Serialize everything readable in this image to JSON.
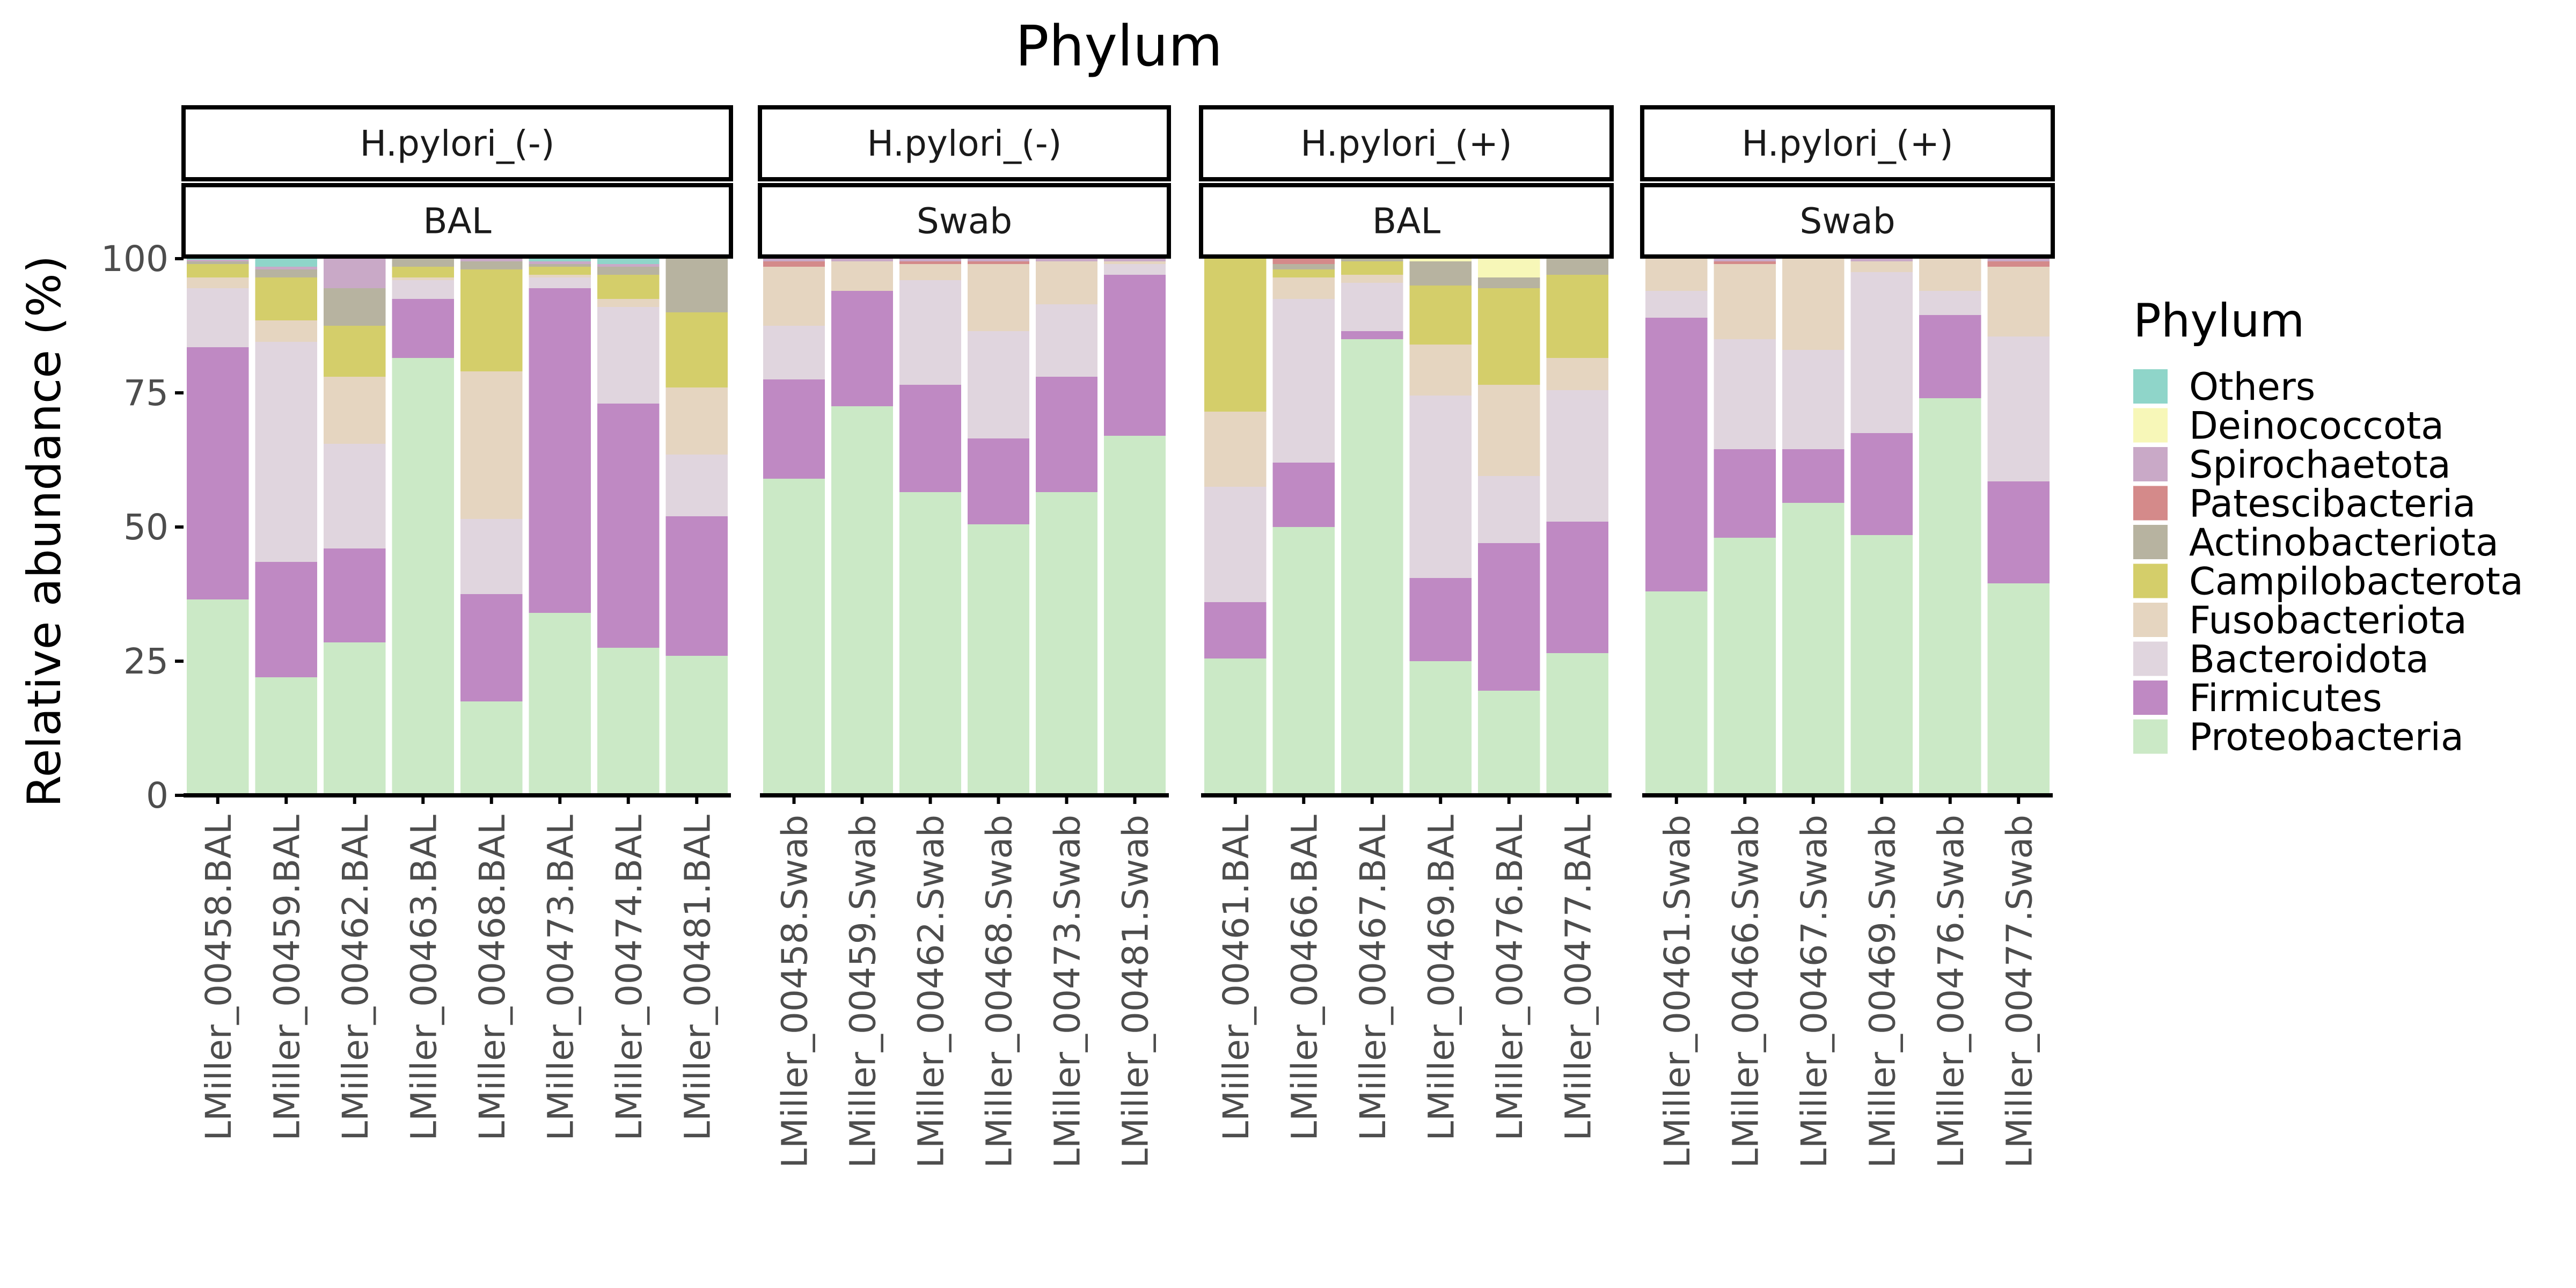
{
  "chart_data": {
    "type": "bar",
    "stacked": true,
    "title": "Phylum",
    "ylabel": "Relative abundance (%)",
    "xlabel": "",
    "ylim": [
      0,
      100
    ],
    "yticks": [
      0,
      25,
      50,
      75,
      100
    ],
    "legend": {
      "title": "Phylum",
      "position": "right",
      "entries": [
        "Others",
        "Deinococcota",
        "Spirochaetota",
        "Patescibacteria",
        "Actinobacteriota",
        "Campilobacterota",
        "Fusobacteriota",
        "Bacteroidota",
        "Firmicutes",
        "Proteobacteria"
      ]
    },
    "stack_order_bottom_to_top": [
      "Proteobacteria",
      "Firmicutes",
      "Bacteroidota",
      "Fusobacteriota",
      "Campilobacterota",
      "Actinobacteriota",
      "Patescibacteria",
      "Spirochaetota",
      "Deinococcota",
      "Others"
    ],
    "colors": {
      "Others": "#8fd5c9",
      "Deinococcota": "#f7f7b8",
      "Spirochaetota": "#c9a9c7",
      "Patescibacteria": "#d48a8a",
      "Actinobacteriota": "#b7b3a0",
      "Campilobacterota": "#d4ce6a",
      "Fusobacteriota": "#e5d5c0",
      "Bacteroidota": "#e0d5de",
      "Firmicutes": "#bf89c3",
      "Proteobacteria": "#cbe9c6"
    },
    "panels": [
      {
        "strip_top": "H.pylori_(-)",
        "strip_bottom": "BAL",
        "categories": [
          "LMiller_00458.BAL",
          "LMiller_00459.BAL",
          "LMiller_00462.BAL",
          "LMiller_00463.BAL",
          "LMiller_00468.BAL",
          "LMiller_00473.BAL",
          "LMiller_00474.BAL",
          "LMiller_00481.BAL"
        ],
        "series": [
          {
            "name": "Proteobacteria",
            "values": [
              36.5,
              22,
              28.5,
              81.5,
              17.5,
              34,
              27.5,
              26
            ]
          },
          {
            "name": "Firmicutes",
            "values": [
              47,
              21.5,
              17.5,
              11,
              20,
              60.5,
              45.5,
              26
            ]
          },
          {
            "name": "Bacteroidota",
            "values": [
              11,
              41,
              19.5,
              3.5,
              14,
              2,
              18,
              11.5
            ]
          },
          {
            "name": "Fusobacteriota",
            "values": [
              2,
              4,
              12.5,
              0.5,
              27.5,
              0.5,
              1.5,
              12.5
            ]
          },
          {
            "name": "Campilobacterota",
            "values": [
              2.5,
              8,
              9.5,
              2,
              19,
              1.5,
              4.5,
              14
            ]
          },
          {
            "name": "Actinobacteriota",
            "values": [
              0.5,
              1.5,
              7,
              1.5,
              1.5,
              0.5,
              1.5,
              10
            ]
          },
          {
            "name": "Patescibacteria",
            "values": [
              0,
              0,
              0,
              0,
              0,
              0,
              0,
              0
            ]
          },
          {
            "name": "Spirochaetota",
            "values": [
              0.3,
              0.5,
              5.5,
              0,
              0.5,
              0.5,
              0.5,
              0
            ]
          },
          {
            "name": "Deinococcota",
            "values": [
              0,
              0,
              0,
              0,
              0,
              0,
              0,
              0
            ]
          },
          {
            "name": "Others",
            "values": [
              0.2,
              1.5,
              0,
              0,
              0,
              0.5,
              1,
              0
            ]
          }
        ]
      },
      {
        "strip_top": "H.pylori_(-)",
        "strip_bottom": "Swab",
        "categories": [
          "LMiller_00458.Swab",
          "LMiller_00459.Swab",
          "LMiller_00462.Swab",
          "LMiller_00468.Swab",
          "LMiller_00473.Swab",
          "LMiller_00481.Swab"
        ],
        "series": [
          {
            "name": "Proteobacteria",
            "values": [
              59,
              72.5,
              56.5,
              50.5,
              56.5,
              67
            ]
          },
          {
            "name": "Firmicutes",
            "values": [
              18.5,
              21.5,
              20,
              16,
              21.5,
              30
            ]
          },
          {
            "name": "Bacteroidota",
            "values": [
              10,
              0,
              19.5,
              20,
              13.5,
              2
            ]
          },
          {
            "name": "Fusobacteriota",
            "values": [
              11,
              5.5,
              3,
              12.5,
              8,
              0.5
            ]
          },
          {
            "name": "Campilobacterota",
            "values": [
              0,
              0,
              0,
              0,
              0,
              0
            ]
          },
          {
            "name": "Actinobacteriota",
            "values": [
              0,
              0,
              0,
              0,
              0,
              0
            ]
          },
          {
            "name": "Patescibacteria",
            "values": [
              1,
              0,
              0.5,
              0.5,
              0,
              0
            ]
          },
          {
            "name": "Spirochaetota",
            "values": [
              0.5,
              0.5,
              0.5,
              0.5,
              0.5,
              0.5
            ]
          },
          {
            "name": "Deinococcota",
            "values": [
              0,
              0,
              0,
              0,
              0,
              0
            ]
          },
          {
            "name": "Others",
            "values": [
              0,
              0,
              0,
              0,
              0,
              0
            ]
          }
        ]
      },
      {
        "strip_top": "H.pylori_(+)",
        "strip_bottom": "BAL",
        "categories": [
          "LMiller_00461.BAL",
          "LMiller_00466.BAL",
          "LMiller_00467.BAL",
          "LMiller_00469.BAL",
          "LMiller_00476.BAL",
          "LMiller_00477.BAL"
        ],
        "series": [
          {
            "name": "Proteobacteria",
            "values": [
              25.5,
              50,
              85,
              25,
              19.5,
              26.5
            ]
          },
          {
            "name": "Firmicutes",
            "values": [
              10.5,
              12,
              1.5,
              15.5,
              27.5,
              24.5
            ]
          },
          {
            "name": "Bacteroidota",
            "values": [
              21.5,
              30.5,
              9,
              34,
              12.5,
              24.5
            ]
          },
          {
            "name": "Fusobacteriota",
            "values": [
              14,
              4,
              1.5,
              9.5,
              17,
              6
            ]
          },
          {
            "name": "Campilobacterota",
            "values": [
              28.5,
              1.5,
              2.5,
              11,
              18,
              15.5
            ]
          },
          {
            "name": "Actinobacteriota",
            "values": [
              0,
              1,
              0.5,
              4.5,
              2,
              3
            ]
          },
          {
            "name": "Patescibacteria",
            "values": [
              0,
              1,
              0,
              0,
              0,
              0
            ]
          },
          {
            "name": "Spirochaetota",
            "values": [
              0,
              0,
              0,
              0,
              0,
              0
            ]
          },
          {
            "name": "Deinococcota",
            "values": [
              0,
              0,
              0,
              0.5,
              3.5,
              0
            ]
          },
          {
            "name": "Others",
            "values": [
              0,
              0,
              0,
              0,
              0,
              0
            ]
          }
        ]
      },
      {
        "strip_top": "H.pylori_(+)",
        "strip_bottom": "Swab",
        "categories": [
          "LMiller_00461.Swab",
          "LMiller_00466.Swab",
          "LMiller_00467.Swab",
          "LMiller_00469.Swab",
          "LMiller_00476.Swab",
          "LMiller_00477.Swab"
        ],
        "series": [
          {
            "name": "Proteobacteria",
            "values": [
              38,
              48,
              54.5,
              48.5,
              74,
              39.5
            ]
          },
          {
            "name": "Firmicutes",
            "values": [
              51,
              16.5,
              10,
              19,
              15.5,
              19
            ]
          },
          {
            "name": "Bacteroidota",
            "values": [
              5,
              20.5,
              18.5,
              30,
              4.5,
              27
            ]
          },
          {
            "name": "Fusobacteriota",
            "values": [
              6,
              14,
              17,
              2,
              6,
              13
            ]
          },
          {
            "name": "Campilobacterota",
            "values": [
              0,
              0,
              0,
              0,
              0,
              0
            ]
          },
          {
            "name": "Actinobacteriota",
            "values": [
              0,
              0,
              0,
              0,
              0,
              0
            ]
          },
          {
            "name": "Patescibacteria",
            "values": [
              0,
              0.5,
              0,
              0,
              0,
              1
            ]
          },
          {
            "name": "Spirochaetota",
            "values": [
              0,
              0.5,
              0,
              0.5,
              0,
              0.5
            ]
          },
          {
            "name": "Deinococcota",
            "values": [
              0,
              0,
              0,
              0,
              0,
              0
            ]
          },
          {
            "name": "Others",
            "values": [
              0,
              0,
              0,
              0,
              0,
              0
            ]
          }
        ]
      }
    ]
  }
}
